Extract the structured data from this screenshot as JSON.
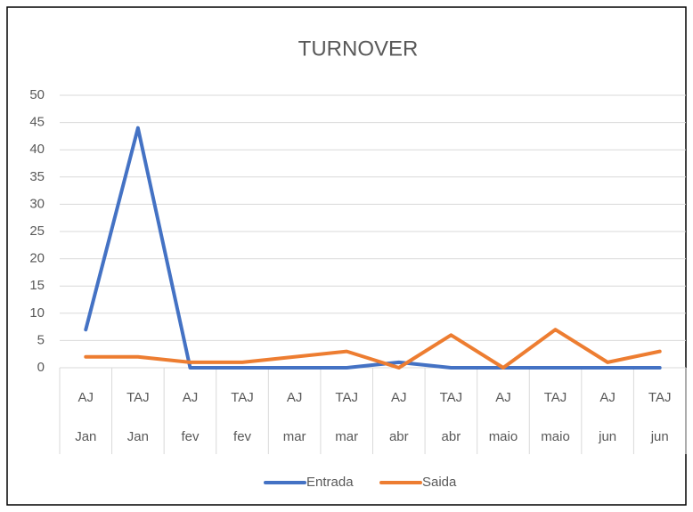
{
  "chart_data": {
    "type": "line",
    "title": "TURNOVER",
    "categories": [
      [
        "AJ",
        "Jan"
      ],
      [
        "TAJ",
        "Jan"
      ],
      [
        "AJ",
        "fev"
      ],
      [
        "TAJ",
        "fev"
      ],
      [
        "AJ",
        "mar"
      ],
      [
        "TAJ",
        "mar"
      ],
      [
        "AJ",
        "abr"
      ],
      [
        "TAJ",
        "abr"
      ],
      [
        "AJ",
        "maio"
      ],
      [
        "TAJ",
        "maio"
      ],
      [
        "AJ",
        "jun"
      ],
      [
        "TAJ",
        "jun"
      ]
    ],
    "series": [
      {
        "name": "Entrada",
        "color": "#4472c4",
        "values": [
          7,
          44,
          0,
          0,
          0,
          0,
          1,
          0,
          0,
          0,
          0,
          0
        ]
      },
      {
        "name": "Saida",
        "color": "#ed7d31",
        "values": [
          2,
          2,
          1,
          1,
          2,
          3,
          0,
          6,
          0,
          7,
          1,
          3
        ]
      }
    ],
    "ylim": [
      0,
      50
    ],
    "yticks": [
      0,
      5,
      10,
      15,
      20,
      25,
      30,
      35,
      40,
      45,
      50
    ],
    "grid": true,
    "legend": "bottom"
  }
}
